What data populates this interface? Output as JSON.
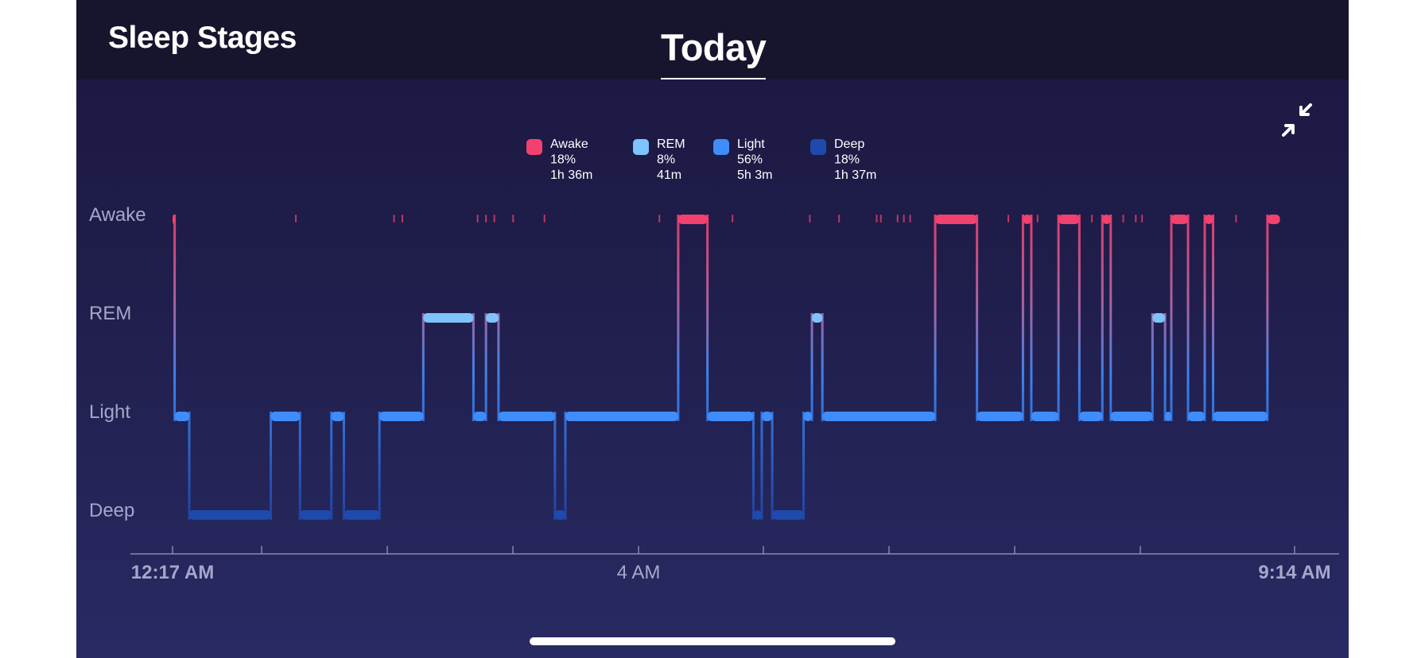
{
  "header": {
    "title": "Sleep Stages",
    "tab": "Today"
  },
  "icons": {
    "collapse": "collapse-arrows-icon"
  },
  "colors": {
    "Awake": "#f2416f",
    "REM": "#7ec3fb",
    "Light": "#3f8dfc",
    "Deep": "#1f4aad",
    "background_top": "#1b1740",
    "background_bottom": "#282a63",
    "axis": "#9a9cc4"
  },
  "chart_data": {
    "type": "step-line",
    "title": "",
    "y_categories": [
      "Awake",
      "REM",
      "Light",
      "Deep"
    ],
    "x_start_label": "12:17 AM",
    "x_mid_label": "4 AM",
    "x_end_label": "9:14 AM",
    "x_range": [
      "00:17",
      "09:14"
    ],
    "legend": [
      {
        "stage": "Awake",
        "percent": "18%",
        "duration": "1h 36m"
      },
      {
        "stage": "REM",
        "percent": "8%",
        "duration": "41m"
      },
      {
        "stage": "Light",
        "percent": "56%",
        "duration": "5h 3m"
      },
      {
        "stage": "Deep",
        "percent": "18%",
        "duration": "1h 37m"
      }
    ],
    "segments": [
      {
        "start": "00:17",
        "end": "00:18",
        "stage": "Awake"
      },
      {
        "start": "00:18",
        "end": "00:25",
        "stage": "Light"
      },
      {
        "start": "00:25",
        "end": "01:04",
        "stage": "Deep"
      },
      {
        "start": "01:04",
        "end": "01:18",
        "stage": "Light"
      },
      {
        "start": "01:18",
        "end": "01:33",
        "stage": "Deep"
      },
      {
        "start": "01:33",
        "end": "01:39",
        "stage": "Light"
      },
      {
        "start": "01:39",
        "end": "01:56",
        "stage": "Deep"
      },
      {
        "start": "01:56",
        "end": "02:17",
        "stage": "Light"
      },
      {
        "start": "02:17",
        "end": "02:41",
        "stage": "REM"
      },
      {
        "start": "02:41",
        "end": "02:47",
        "stage": "Light"
      },
      {
        "start": "02:47",
        "end": "02:53",
        "stage": "REM"
      },
      {
        "start": "02:53",
        "end": "03:20",
        "stage": "Light"
      },
      {
        "start": "03:20",
        "end": "03:25",
        "stage": "Deep"
      },
      {
        "start": "03:25",
        "end": "04:19",
        "stage": "Light"
      },
      {
        "start": "04:19",
        "end": "04:33",
        "stage": "Awake"
      },
      {
        "start": "04:33",
        "end": "04:55",
        "stage": "Light"
      },
      {
        "start": "04:55",
        "end": "04:59",
        "stage": "Deep"
      },
      {
        "start": "04:59",
        "end": "05:04",
        "stage": "Light"
      },
      {
        "start": "05:04",
        "end": "05:19",
        "stage": "Deep"
      },
      {
        "start": "05:19",
        "end": "05:23",
        "stage": "Light"
      },
      {
        "start": "05:23",
        "end": "05:28",
        "stage": "REM"
      },
      {
        "start": "05:28",
        "end": "06:22",
        "stage": "Light"
      },
      {
        "start": "06:22",
        "end": "06:42",
        "stage": "Awake"
      },
      {
        "start": "06:42",
        "end": "07:04",
        "stage": "Light"
      },
      {
        "start": "07:04",
        "end": "07:08",
        "stage": "Awake"
      },
      {
        "start": "07:08",
        "end": "07:21",
        "stage": "Light"
      },
      {
        "start": "07:21",
        "end": "07:31",
        "stage": "Awake"
      },
      {
        "start": "07:31",
        "end": "07:42",
        "stage": "Light"
      },
      {
        "start": "07:42",
        "end": "07:46",
        "stage": "Awake"
      },
      {
        "start": "07:46",
        "end": "08:06",
        "stage": "Light"
      },
      {
        "start": "08:06",
        "end": "08:12",
        "stage": "REM"
      },
      {
        "start": "08:12",
        "end": "08:15",
        "stage": "Light"
      },
      {
        "start": "08:15",
        "end": "08:23",
        "stage": "Awake"
      },
      {
        "start": "08:23",
        "end": "08:31",
        "stage": "Light"
      },
      {
        "start": "08:31",
        "end": "08:35",
        "stage": "Awake"
      },
      {
        "start": "08:35",
        "end": "09:01",
        "stage": "Light"
      },
      {
        "start": "09:01",
        "end": "09:07",
        "stage": "Awake"
      }
    ],
    "brief_awakenings": [
      "01:16",
      "02:03",
      "02:07",
      "02:43",
      "02:47",
      "02:51",
      "03:00",
      "03:15",
      "04:10",
      "04:45",
      "05:22",
      "05:36",
      "05:54",
      "05:56",
      "06:04",
      "06:07",
      "06:10",
      "06:57",
      "07:11",
      "07:37",
      "07:52",
      "07:58",
      "08:01",
      "08:46"
    ],
    "grid": false,
    "legend_position": "top-center"
  }
}
